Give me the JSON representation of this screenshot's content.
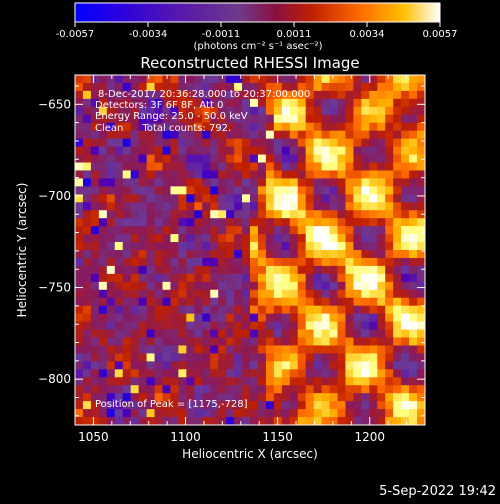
{
  "chart_data": {
    "type": "heatmap",
    "title": "Reconstructed RHESSI Image",
    "xlabel": "Heliocentric X (arcsec)",
    "ylabel": "Heliocentric Y (arcsec)",
    "xlim": [
      1040,
      1230
    ],
    "ylim": [
      -825,
      -634
    ],
    "x_ticks": [
      1050,
      1100,
      1150,
      1200
    ],
    "y_ticks": [
      -650,
      -700,
      -750,
      -800
    ],
    "colorbar": {
      "range": [
        -0.0057,
        0.0057
      ],
      "ticks": [
        "-0.0057",
        "-0.0034",
        "-0.0011",
        "0.0011",
        "0.0034",
        "0.0057"
      ],
      "units": "(photons cm⁻² s⁻¹ asec⁻²)",
      "colormap": [
        "#0000ff",
        "#5000b4",
        "#6a3a9a",
        "#8a1a5a",
        "#c02000",
        "#ff6a00",
        "#ffb400",
        "#ffff80",
        "#ffffff"
      ]
    },
    "annotations": [
      "8-Dec-2017 20:36:28.000 to 20:37:00.000",
      "Detectors: 3F 6F 8F, Att 0",
      "Energy Range: 25.0 - 50.0 keV",
      "Clean      Total counts: 792."
    ],
    "peak_label": "Position of Peak = [1175,-728]",
    "peak": {
      "x": 1175,
      "y": -728
    },
    "footer_date": "5-Sep-2022 19:42"
  }
}
